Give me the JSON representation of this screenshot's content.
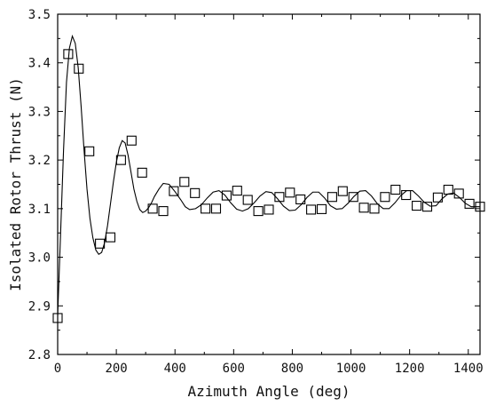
{
  "chart_data": {
    "type": "line",
    "xlabel": "Azimuth Angle (deg)",
    "ylabel": "Isolated Rotor Thrust (N)",
    "xlim": [
      0,
      1440
    ],
    "ylim": [
      2.8,
      3.5
    ],
    "xticks": [
      0,
      200,
      400,
      600,
      800,
      1000,
      1200,
      1400
    ],
    "xtick_labels": [
      "0",
      "200",
      "400",
      "600",
      "800",
      "1000",
      "1200",
      "1400"
    ],
    "yticks": [
      2.8,
      2.9,
      3.0,
      3.1,
      3.2,
      3.3,
      3.4,
      3.5
    ],
    "ytick_labels": [
      "2.8",
      "2.9",
      "3.0",
      "3.1",
      "3.2",
      "3.3",
      "3.4",
      "3.5"
    ],
    "grid": false,
    "series": [
      {
        "style": "line",
        "color": "#000000",
        "x": [
          0,
          10,
          20,
          30,
          40,
          50,
          60,
          70,
          80,
          90,
          100,
          110,
          120,
          130,
          140,
          150,
          160,
          170,
          180,
          190,
          200,
          210,
          220,
          230,
          240,
          250,
          260,
          270,
          280,
          290,
          300,
          310,
          320,
          330,
          345,
          360,
          380,
          400,
          420,
          435,
          450,
          470,
          490,
          510,
          530,
          550,
          570,
          590,
          610,
          630,
          650,
          670,
          690,
          710,
          730,
          750,
          770,
          790,
          810,
          830,
          850,
          870,
          890,
          910,
          930,
          950,
          970,
          990,
          1010,
          1030,
          1050,
          1070,
          1090,
          1110,
          1130,
          1150,
          1170,
          1190,
          1210,
          1230,
          1250,
          1270,
          1290,
          1310,
          1330,
          1350,
          1370,
          1390,
          1410,
          1440
        ],
        "y": [
          2.88,
          3.05,
          3.22,
          3.36,
          3.43,
          3.455,
          3.44,
          3.39,
          3.31,
          3.22,
          3.14,
          3.08,
          3.04,
          3.015,
          3.006,
          3.01,
          3.03,
          3.065,
          3.11,
          3.155,
          3.195,
          3.225,
          3.24,
          3.235,
          3.21,
          3.175,
          3.14,
          3.115,
          3.098,
          3.092,
          3.095,
          3.102,
          3.112,
          3.125,
          3.14,
          3.152,
          3.15,
          3.135,
          3.118,
          3.104,
          3.098,
          3.1,
          3.108,
          3.122,
          3.134,
          3.137,
          3.128,
          3.112,
          3.099,
          3.095,
          3.1,
          3.112,
          3.126,
          3.135,
          3.133,
          3.12,
          3.105,
          3.096,
          3.097,
          3.108,
          3.123,
          3.134,
          3.134,
          3.122,
          3.106,
          3.099,
          3.1,
          3.111,
          3.125,
          3.136,
          3.137,
          3.126,
          3.11,
          3.1,
          3.1,
          3.112,
          3.127,
          3.137,
          3.137,
          3.126,
          3.113,
          3.105,
          3.106,
          3.12,
          3.13,
          3.132,
          3.123,
          3.111,
          3.104,
          3.104
        ]
      },
      {
        "style": "markers",
        "marker": "square",
        "color": "#000000",
        "x": [
          0,
          36,
          72,
          108,
          144,
          180,
          216,
          252,
          288,
          324,
          360,
          396,
          432,
          468,
          504,
          540,
          576,
          612,
          648,
          684,
          720,
          756,
          792,
          828,
          864,
          900,
          936,
          972,
          1008,
          1044,
          1080,
          1116,
          1152,
          1188,
          1224,
          1260,
          1296,
          1332,
          1368,
          1404,
          1440
        ],
        "y": [
          2.875,
          3.418,
          3.388,
          3.218,
          3.028,
          3.041,
          3.2,
          3.24,
          3.174,
          3.1,
          3.095,
          3.136,
          3.155,
          3.132,
          3.1,
          3.1,
          3.127,
          3.137,
          3.118,
          3.095,
          3.098,
          3.124,
          3.133,
          3.119,
          3.098,
          3.099,
          3.124,
          3.136,
          3.124,
          3.102,
          3.1,
          3.124,
          3.139,
          3.128,
          3.106,
          3.104,
          3.123,
          3.139,
          3.131,
          3.11,
          3.104
        ]
      }
    ]
  }
}
